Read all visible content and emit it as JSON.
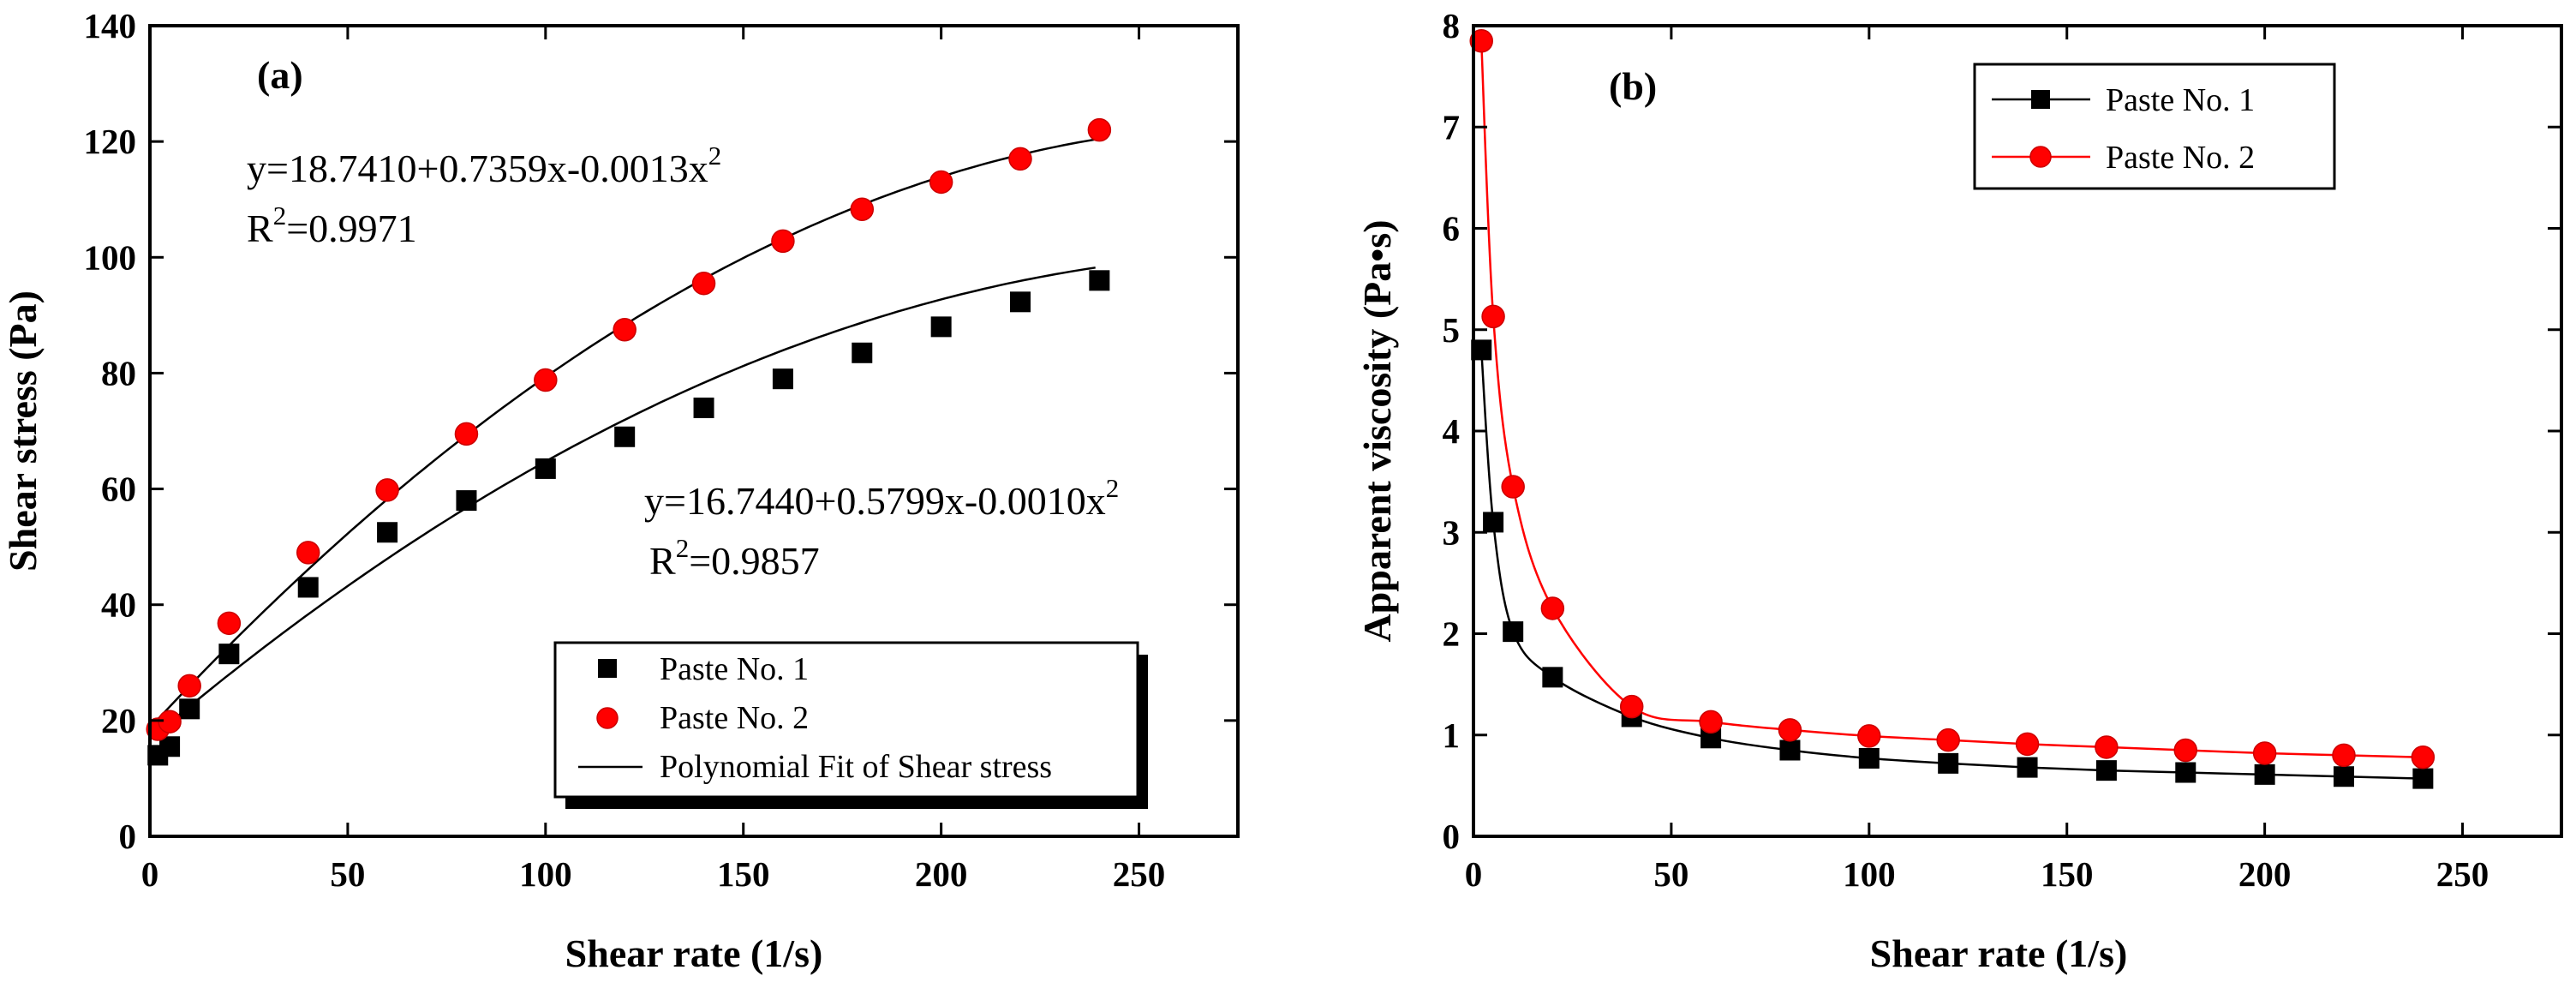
{
  "chart_data": [
    {
      "panel": "(a)",
      "type": "scatter",
      "xlabel": "Shear rate (1/s)",
      "ylabel": "Shear stress (Pa)",
      "xlim": [
        0,
        275
      ],
      "ylim": [
        0,
        140
      ],
      "xticks": [
        "0",
        "50",
        "100",
        "150",
        "200",
        "250"
      ],
      "yticks": [
        "0",
        "20",
        "40",
        "60",
        "80",
        "100",
        "120",
        "140"
      ],
      "series": [
        {
          "name": "Paste No. 1",
          "marker": "square",
          "color": "#000000",
          "x": [
            2,
            5,
            10,
            20,
            40,
            60,
            80,
            100,
            120,
            140,
            160,
            180,
            200,
            220,
            240
          ],
          "y": [
            14,
            15.5,
            22,
            31.5,
            43,
            52.5,
            58,
            63.5,
            69,
            74,
            79,
            83.5,
            88,
            92.3,
            96
          ]
        },
        {
          "name": "Paste No. 2",
          "marker": "circle",
          "color": "#ff0000",
          "x": [
            2,
            5,
            10,
            20,
            40,
            60,
            80,
            100,
            120,
            140,
            160,
            180,
            200,
            220,
            240
          ],
          "y": [
            18.5,
            19.8,
            26,
            36.8,
            49,
            59.8,
            69.5,
            78.8,
            87.5,
            95.5,
            102.8,
            108.3,
            113,
            117,
            122
          ]
        }
      ],
      "fits": [
        {
          "name": "Polynomial Fit of Shear stress",
          "a": 16.744,
          "b": 0.5799,
          "c": -0.001,
          "equation": "y=16.7440+0.5799x-0.0010x",
          "r2_label": "=0.9857"
        },
        {
          "name": "Polynomial Fit of Shear stress",
          "a": 18.741,
          "b": 0.7359,
          "c": -0.0013,
          "equation": "y=18.7410+0.7359x-0.0013x",
          "r2_label": "=0.9971"
        }
      ],
      "legend": [
        "Paste No. 1",
        "Paste No. 2",
        "Polynomial Fit of Shear stress"
      ],
      "legend_position": "bottom-right"
    },
    {
      "panel": "(b)",
      "type": "line",
      "xlabel": "Shear rate (1/s)",
      "ylabel": "Apparent viscosity (Pa•s)",
      "xlim": [
        0,
        275
      ],
      "ylim": [
        0,
        8
      ],
      "xticks": [
        "0",
        "50",
        "100",
        "150",
        "200",
        "250"
      ],
      "yticks": [
        "0",
        "1",
        "2",
        "3",
        "4",
        "5",
        "6",
        "7",
        "8"
      ],
      "series": [
        {
          "name": "Paste No. 1",
          "marker": "square",
          "color": "#000000",
          "x": [
            2,
            5,
            10,
            20,
            40,
            60,
            80,
            100,
            120,
            140,
            160,
            180,
            200,
            220,
            240
          ],
          "y": [
            4.8,
            3.1,
            2.02,
            1.57,
            1.18,
            0.97,
            0.85,
            0.77,
            0.72,
            0.68,
            0.65,
            0.63,
            0.61,
            0.59,
            0.57
          ]
        },
        {
          "name": "Paste No. 2",
          "marker": "circle",
          "color": "#ff0000",
          "x": [
            2,
            5,
            10,
            20,
            40,
            60,
            80,
            100,
            120,
            140,
            160,
            180,
            200,
            220,
            240
          ],
          "y": [
            7.85,
            5.13,
            3.45,
            2.25,
            1.28,
            1.13,
            1.05,
            0.99,
            0.95,
            0.91,
            0.88,
            0.85,
            0.82,
            0.8,
            0.78
          ]
        }
      ],
      "legend": [
        "Paste No. 1",
        "Paste No. 2"
      ],
      "legend_position": "top-right"
    }
  ]
}
